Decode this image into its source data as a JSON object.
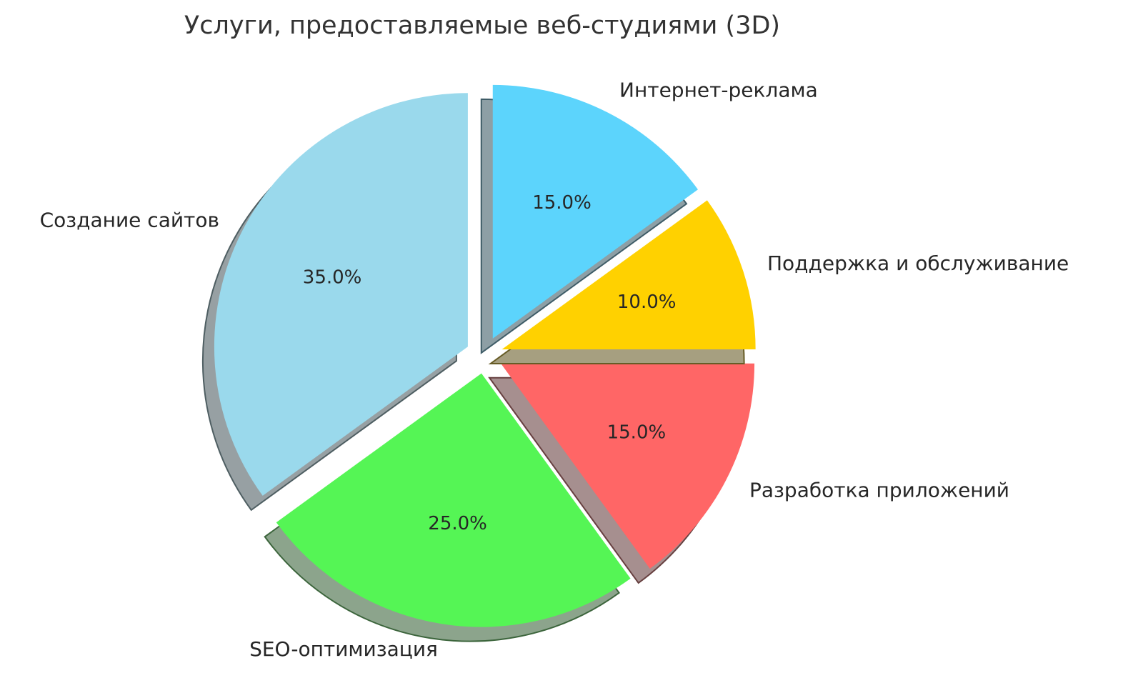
{
  "chart_data": {
    "type": "pie",
    "title": "Услуги, предоставляемые веб-студиями (3D)",
    "slices": [
      {
        "label": "Создание сайтов",
        "value": 35.0,
        "pct_label": "35.0%",
        "color": "#9AD9EC"
      },
      {
        "label": "SEO-оптимизация",
        "value": 25.0,
        "pct_label": "25.0%",
        "color": "#55F555"
      },
      {
        "label": "Разработка приложений",
        "value": 15.0,
        "pct_label": "15.0%",
        "color": "#FF6666"
      },
      {
        "label": "Поддержка и обслуживание",
        "value": 10.0,
        "pct_label": "10.0%",
        "color": "#FFD100"
      },
      {
        "label": "Интернет-реклама",
        "value": 15.0,
        "pct_label": "15.0%",
        "color": "#5CD4FC"
      }
    ],
    "start_angle": 90,
    "direction": "counterclockwise",
    "explode": 0.073,
    "shadow": true,
    "legend": false,
    "background_color": "#FFFFFF",
    "text_color": "#262626"
  }
}
